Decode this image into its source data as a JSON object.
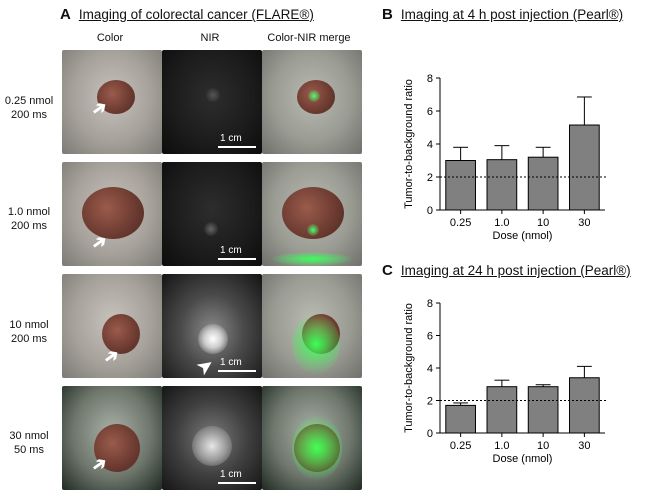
{
  "panelA": {
    "letter": "A",
    "title": "Imaging of colorectal cancer (FLARE®)",
    "columns": [
      "Color",
      "NIR",
      "Color-NIR merge"
    ],
    "rows": [
      {
        "dose": "0.25 nmol",
        "time": "200 ms"
      },
      {
        "dose": "1.0 nmol",
        "time": "200 ms"
      },
      {
        "dose": "10 nmol",
        "time": "200 ms"
      },
      {
        "dose": "30 nmol",
        "time": "50 ms"
      }
    ],
    "scale_label": "1 cm"
  },
  "panelB": {
    "letter": "B",
    "title": "Imaging at 4 h post injection (Pearl®)"
  },
  "panelC": {
    "letter": "C",
    "title": "Imaging at 24 h post injection (Pearl®)"
  },
  "chart_data": [
    {
      "type": "bar",
      "categories": [
        "0.25",
        "1.0",
        "10",
        "30"
      ],
      "values": [
        3.0,
        3.05,
        3.2,
        5.15
      ],
      "errors": [
        0.8,
        0.85,
        0.6,
        1.7
      ],
      "xlabel": "Dose (nmol)",
      "ylabel": "Tumor-to-background ratio",
      "ylim": [
        0,
        8
      ],
      "yticks": [
        0,
        2,
        4,
        6,
        8
      ],
      "reference_line": 2,
      "bar_color": "#808080"
    },
    {
      "type": "bar",
      "categories": [
        "0.25",
        "1.0",
        "10",
        "30"
      ],
      "values": [
        1.7,
        2.85,
        2.85,
        3.4
      ],
      "errors": [
        0.15,
        0.4,
        0.12,
        0.7
      ],
      "xlabel": "Dose (nmol)",
      "ylabel": "Tumor-to-background ratio",
      "ylim": [
        0,
        8
      ],
      "yticks": [
        0,
        2,
        4,
        6,
        8
      ],
      "reference_line": 2,
      "bar_color": "#808080"
    }
  ]
}
